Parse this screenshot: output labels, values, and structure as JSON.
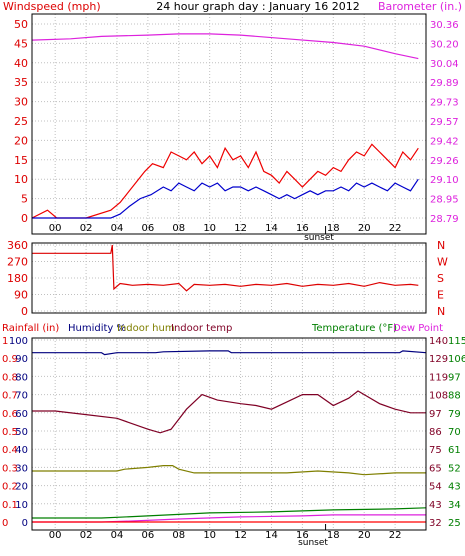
{
  "title": "24 hour graph day : January 16 2012",
  "colors": {
    "wind_avg": "#0000cc",
    "wind_gust": "#ee0000",
    "barometer": "#dd22dd",
    "direction": "#dd0000",
    "humidity": "#00007f",
    "indoor_hum": "#7f7f00",
    "indoor_temp": "#7f0025",
    "temperature": "#007f00",
    "dew_point": "#dd22dd",
    "rainfall": "#ff0000",
    "grid": "#c0c0c0",
    "frame": "#000000"
  },
  "x_ticks": [
    "00",
    "02",
    "04",
    "06",
    "08",
    "10",
    "12",
    "14",
    "16",
    "18",
    "20",
    "22"
  ],
  "x_marker": "sunset",
  "chart_data": [
    {
      "type": "line",
      "name": "wind-barometer",
      "left_axis_label": "Windspeed (mph)",
      "right_axis_label": "Barometer (in.)",
      "left_ticks": [
        "0",
        "5",
        "10",
        "15",
        "20",
        "25",
        "30",
        "35",
        "40",
        "45",
        "50"
      ],
      "right_ticks": [
        "28.79",
        "28.95",
        "29.10",
        "29.26",
        "29.42",
        "29.57",
        "29.73",
        "29.89",
        "30.04",
        "30.20",
        "30.36"
      ],
      "xlim": [
        -1.5,
        24
      ],
      "ylim_left": [
        0,
        50
      ],
      "ylim_right": [
        28.79,
        30.36
      ],
      "marker_x": 17.5,
      "series": [
        {
          "key": "barometer",
          "axis": "right",
          "x": [
            -1.5,
            1,
            3,
            6,
            8,
            10,
            12,
            15,
            18,
            20,
            22,
            23.5
          ],
          "y": [
            30.23,
            30.24,
            30.26,
            30.27,
            30.28,
            30.28,
            30.27,
            30.24,
            30.21,
            30.18,
            30.12,
            30.08
          ]
        },
        {
          "key": "wind_gust",
          "axis": "left",
          "x": [
            -1.5,
            -0.5,
            -0.2,
            0.1,
            2,
            3.6,
            4.2,
            4.6,
            5.2,
            5.8,
            6.3,
            7,
            7.5,
            8,
            8.5,
            9,
            9.5,
            10,
            10.5,
            11,
            11.5,
            12,
            12.5,
            13,
            13.5,
            14,
            14.5,
            15,
            15.5,
            16,
            16.5,
            17,
            17.5,
            18,
            18.5,
            19,
            19.5,
            20,
            20.5,
            21,
            21.5,
            22,
            22.5,
            23,
            23.5
          ],
          "y": [
            0,
            2,
            1,
            0,
            0,
            2,
            4,
            6,
            9,
            12,
            14,
            13,
            17,
            16,
            15,
            17,
            14,
            16,
            13,
            18,
            15,
            16,
            13,
            17,
            12,
            11,
            9,
            12,
            10,
            8,
            10,
            12,
            11,
            13,
            12,
            15,
            17,
            16,
            19,
            17,
            15,
            13,
            17,
            15,
            18
          ]
        },
        {
          "key": "wind_avg",
          "axis": "left",
          "x": [
            -1.5,
            3.6,
            4.2,
            4.8,
            5.5,
            6.2,
            7,
            7.5,
            8,
            8.5,
            9,
            9.5,
            10,
            10.5,
            11,
            11.5,
            12,
            12.5,
            13,
            13.5,
            14,
            14.5,
            15,
            15.5,
            16,
            16.5,
            17,
            17.5,
            18,
            18.5,
            19,
            19.5,
            20,
            20.5,
            21,
            21.5,
            22,
            22.5,
            23,
            23.5
          ],
          "y": [
            0,
            0,
            1,
            3,
            5,
            6,
            8,
            7,
            9,
            8,
            7,
            9,
            8,
            9,
            7,
            8,
            8,
            7,
            8,
            7,
            6,
            5,
            6,
            5,
            6,
            7,
            6,
            7,
            7,
            8,
            7,
            9,
            8,
            9,
            8,
            7,
            9,
            8,
            7,
            10
          ]
        }
      ]
    },
    {
      "type": "line",
      "name": "wind-direction",
      "left_ticks": [
        "0",
        "90",
        "180",
        "270",
        "360"
      ],
      "right_ticks": [
        "N",
        "E",
        "S",
        "W",
        "N"
      ],
      "xlim": [
        -1.5,
        24
      ],
      "ylim": [
        0,
        360
      ],
      "series": [
        {
          "key": "direction",
          "x": [
            -1.5,
            2,
            3.6,
            3.7,
            3.8,
            4.2,
            5,
            6,
            7,
            8,
            8.5,
            9,
            10,
            11,
            12,
            13,
            14,
            15,
            16,
            17,
            18,
            19,
            20,
            21,
            22,
            23,
            23.5
          ],
          "y": [
            315,
            315,
            315,
            360,
            120,
            150,
            140,
            145,
            140,
            150,
            110,
            145,
            140,
            145,
            135,
            145,
            140,
            150,
            135,
            145,
            140,
            150,
            135,
            155,
            140,
            145,
            140
          ]
        }
      ]
    },
    {
      "type": "line",
      "name": "temp-humidity-rain",
      "header_left": [
        "Rainfall (in)",
        "Humidity %",
        "Indoor hum",
        "Indoor temp"
      ],
      "header_right": [
        "Temperature (°F)",
        "Dew Point"
      ],
      "rain_ticks": [
        "0",
        "0.1",
        "0.2",
        "0.3",
        "0.4",
        "0.5",
        "0.6",
        "0.7",
        "0.8",
        "0.9",
        "1"
      ],
      "hum_ticks": [
        "0",
        "10",
        "20",
        "30",
        "40",
        "50",
        "60",
        "70",
        "80",
        "90",
        "100"
      ],
      "temp_ticks": [
        "32",
        "43",
        "54",
        "65",
        "75",
        "86",
        "97",
        "108",
        "119",
        "129",
        "140"
      ],
      "temp2_ticks": [
        "25",
        "34",
        "43",
        "52",
        "61",
        "70",
        "79",
        "88",
        "97",
        "106",
        "115"
      ],
      "xlim": [
        -1.5,
        24
      ],
      "ylim_hum": [
        0,
        100
      ],
      "ylim_temp": [
        25,
        115
      ],
      "ylim_rain": [
        0,
        1
      ],
      "marker_x": 17.5,
      "series": [
        {
          "key": "humidity",
          "axis": "hum",
          "x": [
            -1.5,
            2,
            3,
            3.2,
            4,
            6.5,
            7,
            10,
            11.2,
            11.4,
            15,
            18,
            19,
            22.3,
            22.5,
            24
          ],
          "y": [
            93,
            93,
            93,
            92,
            93,
            93,
            93.5,
            94,
            94,
            93,
            93,
            93,
            93,
            93,
            94,
            93
          ]
        },
        {
          "key": "indoor_temp",
          "axis": "hum",
          "x": [
            -1.5,
            0,
            2,
            4,
            6,
            6.8,
            7.5,
            8.5,
            9.5,
            10.5,
            12,
            13,
            14,
            15,
            16,
            17,
            18,
            19,
            19.6,
            20,
            21,
            22,
            23,
            24
          ],
          "y": [
            61,
            61,
            59,
            57,
            51,
            49,
            51,
            62,
            70,
            67,
            65,
            64,
            62,
            66,
            70,
            70,
            64,
            68,
            72,
            70,
            65,
            62,
            60,
            60
          ]
        },
        {
          "key": "indoor_hum",
          "axis": "hum",
          "x": [
            -1.5,
            4,
            4.5,
            6,
            7,
            7.6,
            8,
            9,
            9.6,
            15,
            17,
            19,
            20,
            22,
            24
          ],
          "y": [
            28,
            28,
            29,
            30,
            31,
            31,
            29,
            27,
            27,
            27,
            28,
            27,
            26,
            27,
            27
          ]
        },
        {
          "key": "temperature",
          "axis": "temp",
          "x": [
            -1.5,
            3,
            6,
            10,
            14,
            18,
            22,
            24
          ],
          "y": [
            27,
            27,
            28,
            29.5,
            30,
            31,
            31.5,
            32
          ]
        },
        {
          "key": "dew_point",
          "axis": "temp",
          "x": [
            -1.5,
            3,
            5,
            8,
            12,
            16,
            18,
            22,
            24
          ],
          "y": [
            25,
            25,
            25.5,
            26.5,
            27.5,
            28,
            28.5,
            28.5,
            28.5
          ]
        },
        {
          "key": "rainfall",
          "axis": "rain",
          "x": [
            -1.5,
            24
          ],
          "y": [
            0,
            0
          ]
        }
      ]
    }
  ]
}
